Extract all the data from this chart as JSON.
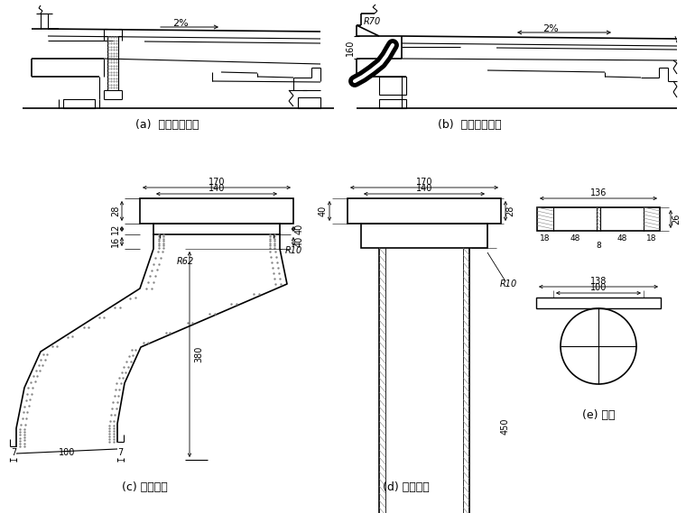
{
  "bg_color": "#ffffff",
  "line_color": "#000000",
  "label_a": "(a)  直管安装示意",
  "label_b": "(b)  弯管安装示意",
  "label_c": "(c) 弯泄水管",
  "label_d": "(d) 直泄水管",
  "label_e": "(e) 栅盖",
  "font_size_label": 9,
  "font_size_dim": 7
}
